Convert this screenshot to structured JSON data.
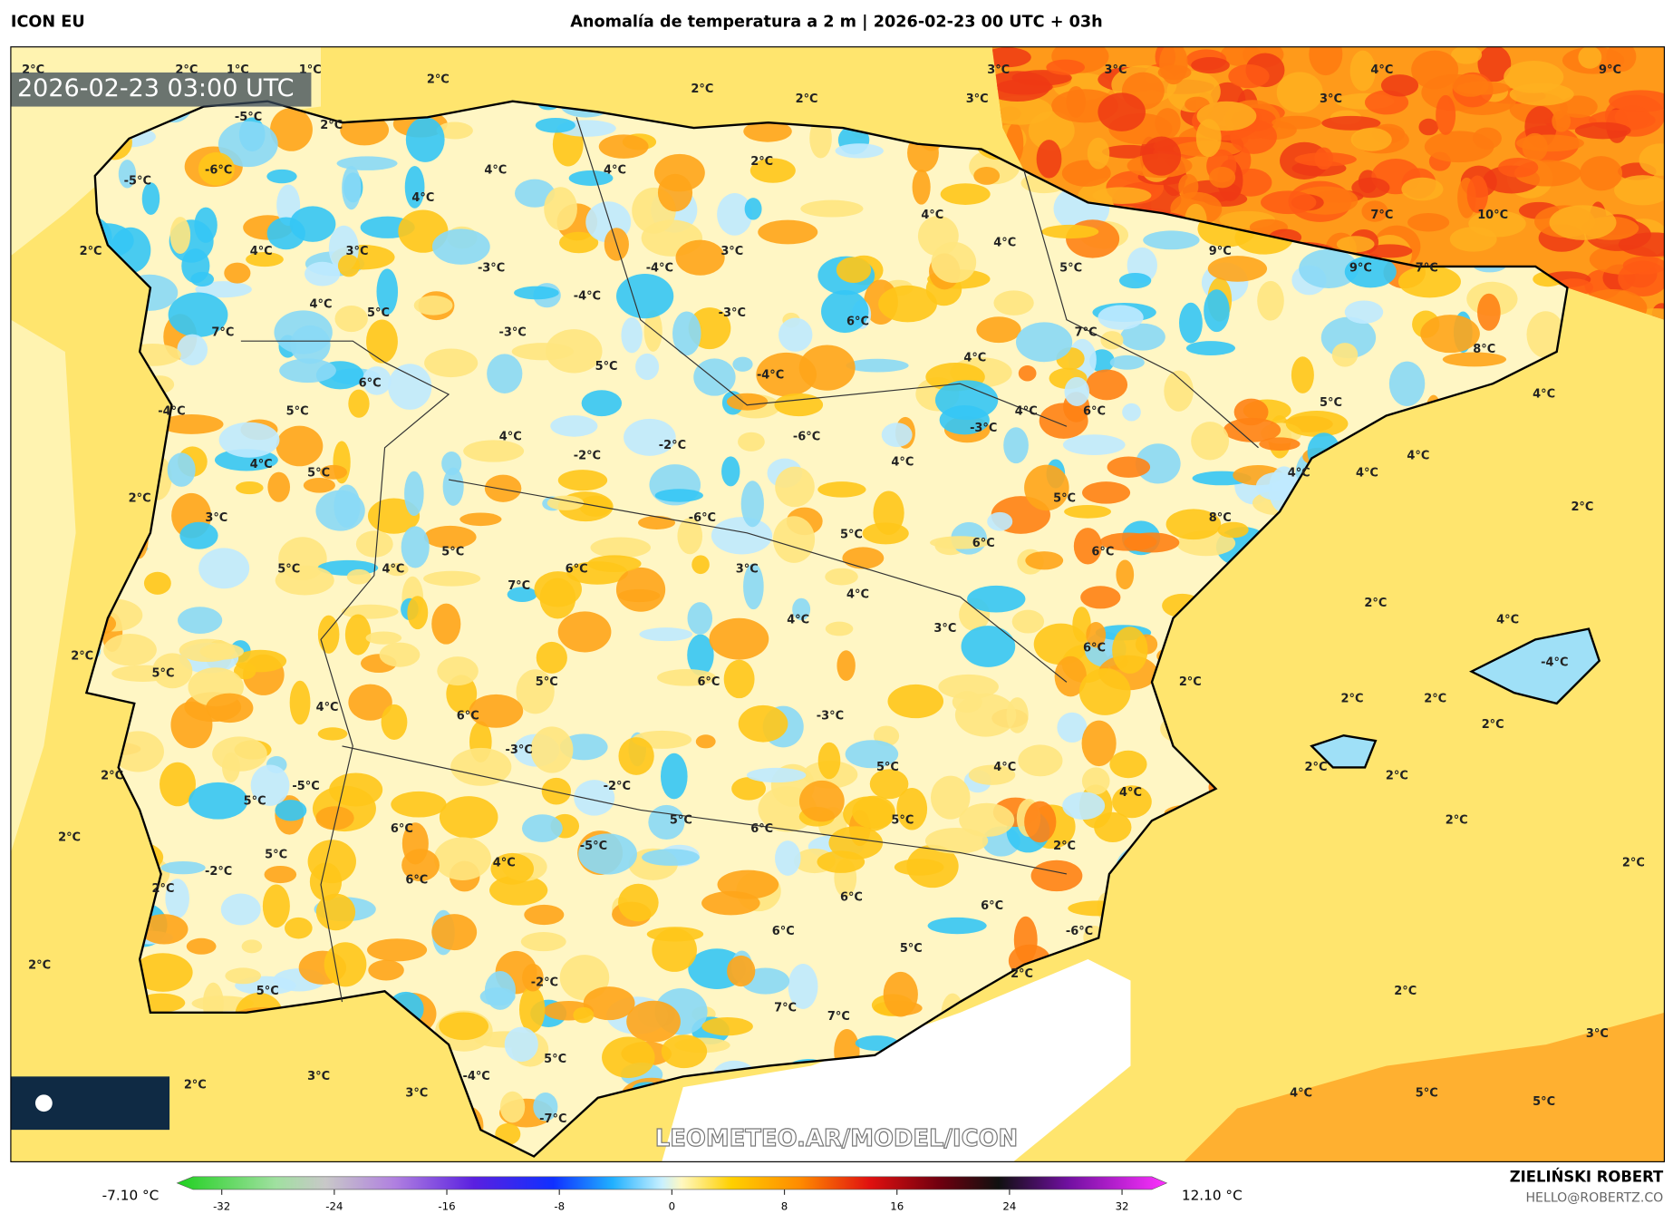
{
  "header": {
    "model": "ICON EU",
    "title": "Anomalía de temperatura a 2 m | 2026-02-23 00 UTC + 03h"
  },
  "map": {
    "timestamp": "2026-02-23 03:00 UTC",
    "watermark": "LEOMETEO.AR/MODEL/ICON",
    "labels": [
      "2°C",
      "2°C",
      "1°C",
      "1°C",
      "2°C",
      "2°C",
      "2°C",
      "3°C",
      "3°C",
      "3°C",
      "4°C",
      "3°C",
      "9°C",
      "-5°C",
      "2°C",
      "-5°C",
      "-6°C",
      "4°C",
      "4°C",
      "2°C",
      "4°C",
      "2°C",
      "4°C",
      "3°C",
      "-3°C",
      "-4°C",
      "-4°C",
      "3°C",
      "4°C",
      "4°C",
      "5°C",
      "9°C",
      "9°C",
      "7°C",
      "10°C",
      "7°C",
      "4°C",
      "5°C",
      "7°C",
      "-3°C",
      "-3°C",
      "6°C",
      "7°C",
      "8°C",
      "5°C",
      "-4°C",
      "4°C",
      "6°C",
      "-4°C",
      "5°C",
      "4°C",
      "6°C",
      "5°C",
      "4°C",
      "-3°C",
      "-6°C",
      "4°C",
      "-2°C",
      "-2°C",
      "4°C",
      "4°C",
      "5°C",
      "4°C",
      "4°C",
      "4°C",
      "2°C",
      "3°C",
      "5°C",
      "8°C",
      "2°C",
      "-6°C",
      "5°C",
      "6°C",
      "5°C",
      "4°C",
      "5°C",
      "6°C",
      "7°C",
      "3°C",
      "6°C",
      "4°C",
      "2°C",
      "4°C",
      "3°C",
      "6°C",
      "4°C",
      "2°C",
      "5°C",
      "5°C",
      "6°C",
      "2°C",
      "-4°C",
      "2°C",
      "2°C",
      "4°C",
      "6°C",
      "-3°C",
      "2°C",
      "-3°C",
      "5°C",
      "4°C",
      "2°C",
      "2°C",
      "2°C",
      "-5°C",
      "-2°C",
      "5°C",
      "4°C",
      "5°C",
      "6°C",
      "5°C",
      "2°C",
      "2°C",
      "6°C",
      "-5°C",
      "2°C",
      "5°C",
      "4°C",
      "2°C",
      "-2°C",
      "6°C",
      "2°C",
      "6°C",
      "6°C",
      "-6°C",
      "6°C",
      "5°C",
      "2°C",
      "2°C",
      "-2°C",
      "5°C",
      "2°C",
      "7°C",
      "7°C",
      "3°C",
      "5°C",
      "-4°C",
      "3°C",
      "2°C",
      "3°C",
      "4°C",
      "5°C",
      "5°C",
      "-7°C"
    ]
  },
  "colorbar": {
    "min_label": "-7.10 °C",
    "max_label": "12.10 °C",
    "ticks": [
      -32,
      -24,
      -16,
      -8,
      0,
      8,
      16,
      24,
      32
    ]
  },
  "credits": {
    "author": "ZIELIŃSKI ROBERT",
    "email": "HELLO@ROBERTZ.CO"
  }
}
